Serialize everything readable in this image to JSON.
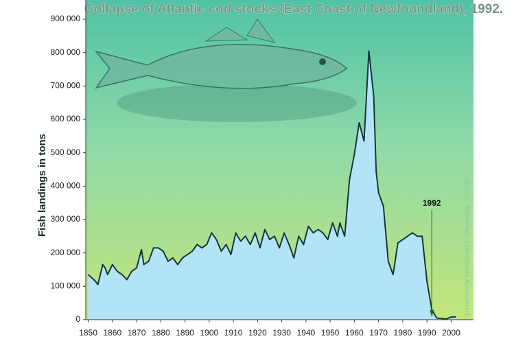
{
  "chart_data": {
    "type": "area",
    "title": "Collapse of Atlantic cod stocks (East Coast of Newfoundland), 1992.",
    "y_label": "Fish landings in tons",
    "source": "Source : Millennium Ecosystems Assessment",
    "annotation": {
      "text": "1992",
      "x": 1992
    },
    "x": [
      1850,
      1853,
      1854,
      1856,
      1857,
      1858,
      1860,
      1862,
      1864,
      1866,
      1868,
      1870,
      1872,
      1873,
      1875,
      1877,
      1879,
      1881,
      1883,
      1885,
      1887,
      1889,
      1891,
      1893,
      1895,
      1897,
      1899,
      1901,
      1903,
      1905,
      1907,
      1909,
      1911,
      1913,
      1915,
      1917,
      1919,
      1921,
      1923,
      1925,
      1927,
      1929,
      1931,
      1933,
      1935,
      1937,
      1939,
      1941,
      1943,
      1945,
      1947,
      1949,
      1951,
      1953,
      1954,
      1956,
      1958,
      1960,
      1962,
      1964,
      1966,
      1968,
      1969,
      1970,
      1972,
      1974,
      1976,
      1978,
      1980,
      1982,
      1984,
      1986,
      1988,
      1990,
      1992,
      1994,
      1998,
      2000,
      2002
    ],
    "series": [
      {
        "name": "Fish landings",
        "color": "#b3e3f7",
        "line_color": "#163636",
        "values": [
          135000,
          115000,
          105000,
          165000,
          155000,
          135000,
          165000,
          145000,
          135000,
          120000,
          145000,
          155000,
          210000,
          165000,
          175000,
          215000,
          215000,
          205000,
          175000,
          185000,
          165000,
          185000,
          195000,
          205000,
          225000,
          215000,
          225000,
          260000,
          240000,
          205000,
          225000,
          195000,
          260000,
          235000,
          250000,
          225000,
          260000,
          215000,
          270000,
          240000,
          250000,
          215000,
          260000,
          225000,
          185000,
          250000,
          225000,
          280000,
          260000,
          270000,
          260000,
          240000,
          290000,
          250000,
          290000,
          250000,
          420000,
          495000,
          590000,
          535000,
          805000,
          670000,
          445000,
          380000,
          340000,
          175000,
          135000,
          230000,
          240000,
          250000,
          260000,
          250000,
          250000,
          115000,
          30000,
          5000,
          2000,
          8000,
          8000
        ]
      }
    ],
    "xlim": [
      1849,
      2003
    ],
    "ylim": [
      0,
      900000
    ],
    "xticks": [
      1850,
      1860,
      1870,
      1880,
      1890,
      1900,
      1910,
      1920,
      1930,
      1940,
      1950,
      1960,
      1970,
      1980,
      1990,
      2000
    ],
    "yticks": [
      0,
      {
        "value": 100000,
        "label": "100 000"
      },
      {
        "value": 200000,
        "label": "200 000"
      },
      {
        "value": 300000,
        "label": "300 000"
      },
      {
        "value": 400000,
        "label": "400 000"
      },
      {
        "value": 500000,
        "label": "500 000"
      },
      {
        "value": 600000,
        "label": "600 000"
      },
      {
        "value": 700000,
        "label": "700 000"
      },
      {
        "value": 800000,
        "label": "800 000"
      },
      {
        "value": 900000,
        "label": "900 000"
      }
    ],
    "grid": false
  }
}
